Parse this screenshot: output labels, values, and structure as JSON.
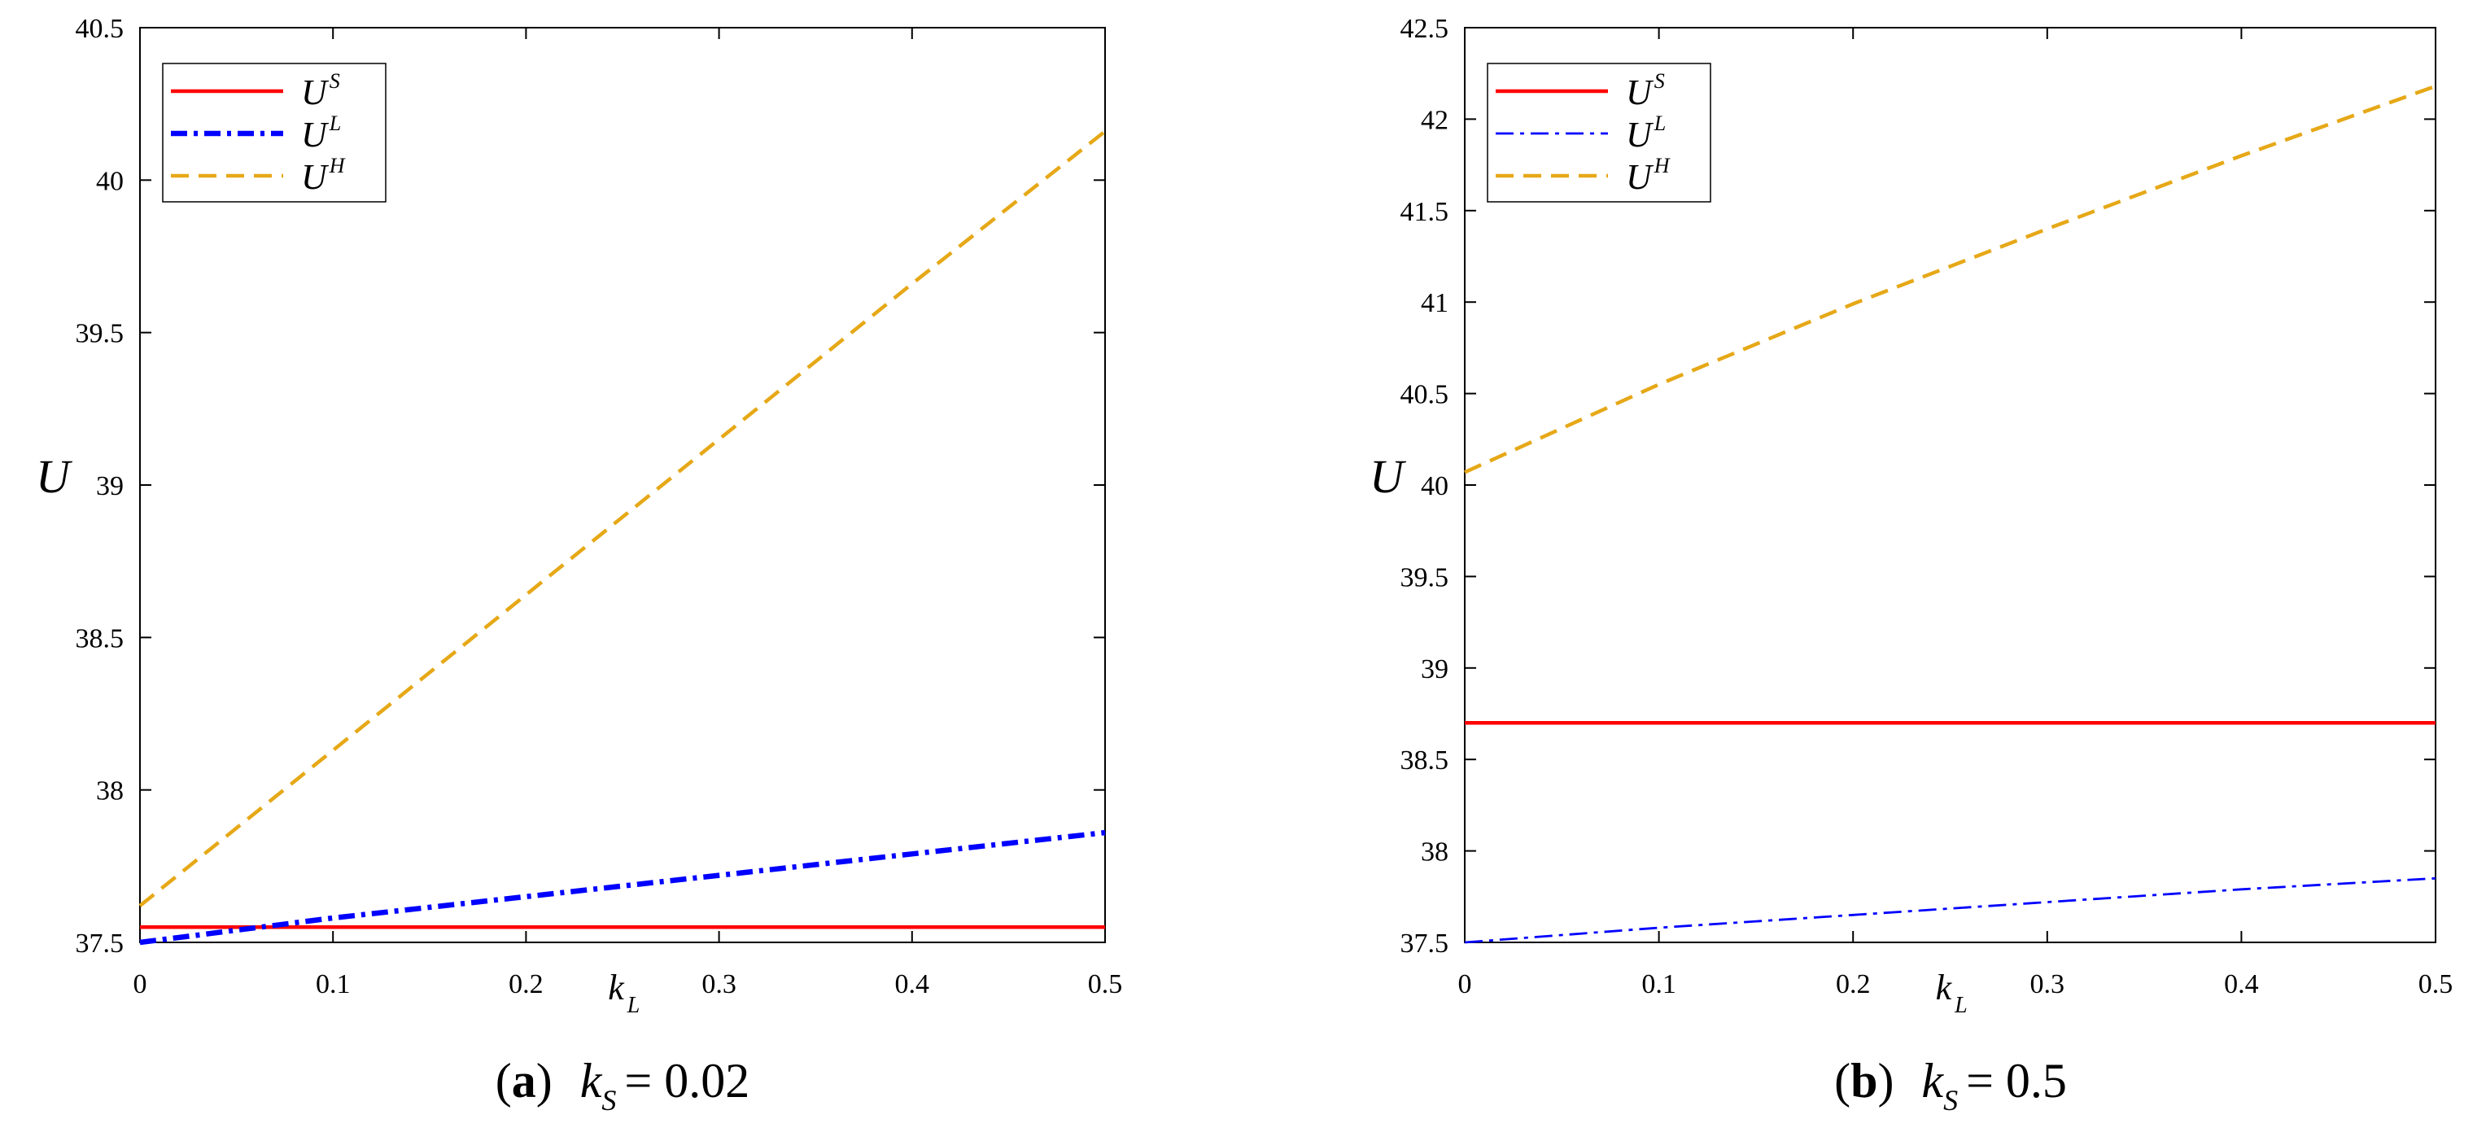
{
  "chart_data": [
    {
      "type": "line",
      "panel": "a",
      "caption": {
        "tag": "a",
        "var": "k",
        "sub": "S",
        "eq": "= 0.02"
      },
      "ylabel": "U",
      "xlabel": {
        "main": "k",
        "sub": "L"
      },
      "xlim": [
        0,
        0.5
      ],
      "ylim": [
        37.5,
        40.5
      ],
      "xticks": [
        "0",
        "0.1",
        "0.2",
        "0.3",
        "0.4",
        "0.5"
      ],
      "yticks": [
        "37.5",
        "38",
        "38.5",
        "39",
        "39.5",
        "40",
        "40.5"
      ],
      "legend_position": "top-left",
      "series": [
        {
          "name": "U",
          "sup": "S",
          "color": "#ff0000",
          "style": "solid",
          "x": [
            0,
            0.5
          ],
          "y": [
            37.55,
            37.55
          ]
        },
        {
          "name": "U",
          "sup": "L",
          "color": "#0000ff",
          "style": "dashdot-thick",
          "x": [
            0,
            0.1,
            0.2,
            0.3,
            0.4,
            0.5
          ],
          "y": [
            37.5,
            37.58,
            37.65,
            37.72,
            37.79,
            37.86
          ]
        },
        {
          "name": "U",
          "sup": "H",
          "color": "#e6a817",
          "style": "dashed",
          "x": [
            0,
            0.1,
            0.2,
            0.3,
            0.4,
            0.5
          ],
          "y": [
            37.62,
            38.13,
            38.64,
            39.15,
            39.66,
            40.16
          ]
        }
      ]
    },
    {
      "type": "line",
      "panel": "b",
      "caption": {
        "tag": "b",
        "var": "k",
        "sub": "S",
        "eq": "= 0.5"
      },
      "ylabel": "U",
      "xlabel": {
        "main": "k",
        "sub": "L"
      },
      "xlim": [
        0,
        0.5
      ],
      "ylim": [
        37.5,
        42.5
      ],
      "xticks": [
        "0",
        "0.1",
        "0.2",
        "0.3",
        "0.4",
        "0.5"
      ],
      "yticks": [
        "37.5",
        "38",
        "38.5",
        "39",
        "39.5",
        "40",
        "40.5",
        "41",
        "41.5",
        "42",
        "42.5"
      ],
      "legend_position": "top-left",
      "series": [
        {
          "name": "U",
          "sup": "S",
          "color": "#ff0000",
          "style": "solid",
          "x": [
            0,
            0.5
          ],
          "y": [
            38.7,
            38.7
          ]
        },
        {
          "name": "U",
          "sup": "L",
          "color": "#0000ff",
          "style": "dashdot-thin",
          "x": [
            0,
            0.1,
            0.2,
            0.3,
            0.4,
            0.5
          ],
          "y": [
            37.5,
            37.58,
            37.65,
            37.72,
            37.79,
            37.85
          ]
        },
        {
          "name": "U",
          "sup": "H",
          "color": "#e6a817",
          "style": "dashed",
          "x": [
            0,
            0.1,
            0.2,
            0.3,
            0.4,
            0.5
          ],
          "y": [
            40.07,
            40.55,
            40.99,
            41.4,
            41.8,
            42.18
          ]
        }
      ]
    }
  ]
}
